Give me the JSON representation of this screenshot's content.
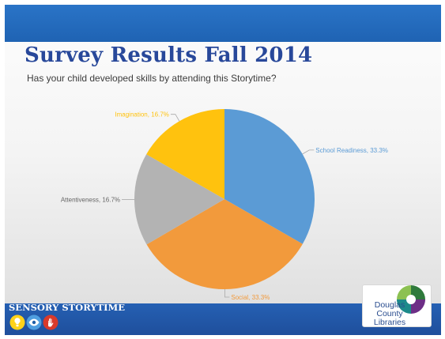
{
  "slide": {
    "title": "Survey Results Fall 2014",
    "subtitle": "Has your child developed skills by attending this Storytime?"
  },
  "footer": {
    "label": "SENSORY STORYTIME",
    "icons": [
      "lightbulb-icon",
      "eye-icon",
      "hand-icon"
    ]
  },
  "logo": {
    "lines": [
      "Douglas",
      "County",
      "Libraries"
    ]
  },
  "chart_data": {
    "type": "pie",
    "title": "",
    "slices": [
      {
        "label": "School Readiness, 33.3%",
        "value": 33.3,
        "color": "#5b9bd5"
      },
      {
        "label": "Social, 33.3%",
        "value": 33.3,
        "color": "#f29a3c"
      },
      {
        "label": "Attentiveness, 16.7%",
        "value": 16.7,
        "color": "#b3b3b3"
      },
      {
        "label": "Imagination, 16.7%",
        "value": 16.7,
        "color": "#ffc20e"
      }
    ],
    "start_angle_deg": 0,
    "direction": "clockwise",
    "labels_outside": true
  },
  "colors": {
    "band": "#2169bb",
    "title": "#28489a"
  }
}
